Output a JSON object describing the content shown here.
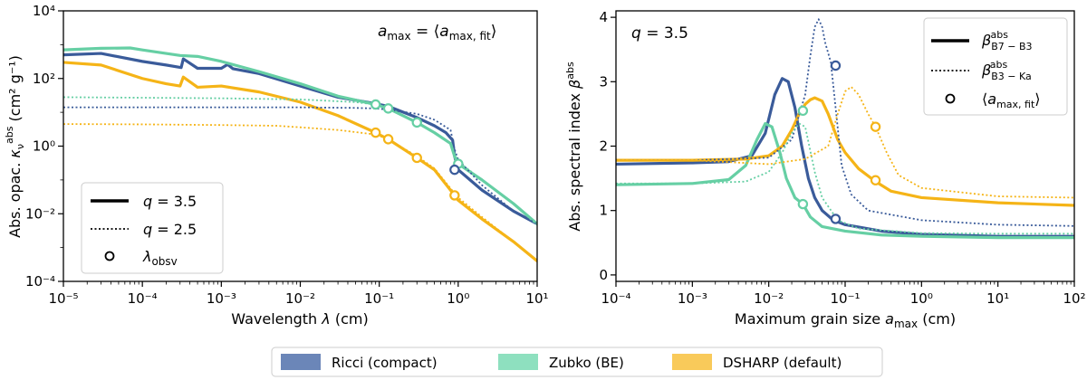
{
  "chart_data": [
    {
      "type": "line",
      "panel": "left",
      "xscale": "log",
      "yscale": "log",
      "xlabel": "Wavelength λ (cm)",
      "ylabel": "Abs. opac. κ_ν^abs (cm² g⁻¹)",
      "xlim": [
        1e-05,
        10
      ],
      "ylim": [
        0.0001,
        10000
      ],
      "xtick_labels": [
        "10⁻⁵",
        "10⁻⁴",
        "10⁻³",
        "10⁻²",
        "10⁻¹",
        "10⁰",
        "10¹"
      ],
      "ytick_labels": [
        "10⁻⁴",
        "10⁻²",
        "10⁰",
        "10²",
        "10⁴"
      ],
      "annotation": "a_max = ⟨a_max,fit⟩",
      "legend": {
        "position": "lower-left",
        "entries": [
          {
            "label": "q = 3.5",
            "style": "solid"
          },
          {
            "label": "q = 2.5",
            "style": "dotted"
          },
          {
            "label": "λ_obsv",
            "style": "marker"
          }
        ]
      },
      "series": [
        {
          "name": "Ricci (compact)",
          "color": "#3a5b9a",
          "style": "solid",
          "x": [
            1e-05,
            3e-05,
            0.0001,
            0.0002,
            0.00031,
            0.00033,
            0.0005,
            0.001,
            0.0012,
            0.0014,
            0.003,
            0.01,
            0.03,
            0.09,
            0.13,
            0.3,
            0.5,
            0.7,
            0.85,
            0.9,
            1,
            2,
            5,
            10
          ],
          "y": [
            500,
            550,
            320,
            250,
            210,
            380,
            200,
            200,
            260,
            195,
            140,
            60,
            28,
            18,
            15,
            7,
            4,
            2.5,
            1.5,
            0.5,
            0.2,
            0.05,
            0.012,
            0.005
          ]
        },
        {
          "name": "Zubko (BE)",
          "color": "#66cfa4",
          "style": "solid",
          "x": [
            1e-05,
            3e-05,
            7e-05,
            0.0001,
            0.0002,
            0.0003,
            0.0005,
            0.001,
            0.003,
            0.01,
            0.03,
            0.09,
            0.13,
            0.3,
            0.5,
            0.8,
            0.9,
            1,
            2,
            5,
            10
          ],
          "y": [
            700,
            780,
            800,
            700,
            550,
            480,
            450,
            320,
            160,
            70,
            30,
            17,
            13,
            5,
            2.5,
            1.2,
            0.5,
            0.3,
            0.1,
            0.02,
            0.005
          ]
        },
        {
          "name": "DSHARP (default)",
          "color": "#f5b417",
          "style": "solid",
          "x": [
            1e-05,
            3e-05,
            0.0001,
            0.0002,
            0.0003,
            0.00033,
            0.0005,
            0.001,
            0.003,
            0.01,
            0.03,
            0.09,
            0.13,
            0.3,
            0.5,
            0.9,
            1,
            2,
            5,
            10
          ],
          "y": [
            300,
            250,
            100,
            70,
            60,
            110,
            55,
            60,
            40,
            20,
            8,
            2.5,
            1.6,
            0.45,
            0.2,
            0.035,
            0.025,
            0.007,
            0.0015,
            0.0004
          ]
        },
        {
          "name": "Ricci (compact) q=2.5",
          "color": "#3a5b9a",
          "style": "dotted",
          "x": [
            1e-05,
            0.001,
            0.01,
            0.05,
            0.09,
            0.13,
            0.3,
            0.5,
            0.8,
            0.9,
            1,
            2,
            5,
            10
          ],
          "y": [
            14,
            14,
            14,
            13.5,
            13,
            12,
            9,
            6,
            3,
            0.8,
            0.4,
            0.07,
            0.012,
            0.005
          ]
        },
        {
          "name": "Zubko (BE) q=2.5",
          "color": "#66cfa4",
          "style": "dotted",
          "x": [
            1e-05,
            0.0001,
            0.001,
            0.01,
            0.05,
            0.09,
            0.13,
            0.3,
            0.5,
            0.8,
            0.9,
            1,
            2,
            5,
            10
          ],
          "y": [
            28,
            27,
            26,
            24,
            20,
            17,
            13,
            5,
            2.5,
            1.2,
            0.6,
            0.35,
            0.1,
            0.02,
            0.005
          ]
        },
        {
          "name": "DSHARP (default) q=2.5",
          "color": "#f5b417",
          "style": "dotted",
          "x": [
            1e-05,
            0.0001,
            0.001,
            0.005,
            0.01,
            0.03,
            0.09,
            0.13,
            0.3,
            0.5,
            0.9,
            1,
            2,
            5,
            10
          ],
          "y": [
            4.5,
            4.4,
            4.2,
            4,
            3.6,
            3,
            2.2,
            1.6,
            0.5,
            0.22,
            0.04,
            0.03,
            0.008,
            0.0015,
            0.0004
          ]
        }
      ],
      "markers": [
        {
          "color": "#66cfa4",
          "x": 0.09,
          "y": 17
        },
        {
          "color": "#66cfa4",
          "x": 0.13,
          "y": 13
        },
        {
          "color": "#66cfa4",
          "x": 0.3,
          "y": 5
        },
        {
          "color": "#66cfa4",
          "x": 1.0,
          "y": 0.3
        },
        {
          "color": "#3a5b9a",
          "x": 0.9,
          "y": 0.2
        },
        {
          "color": "#f5b417",
          "x": 0.09,
          "y": 2.5
        },
        {
          "color": "#f5b417",
          "x": 0.13,
          "y": 1.6
        },
        {
          "color": "#f5b417",
          "x": 0.3,
          "y": 0.45
        },
        {
          "color": "#f5b417",
          "x": 0.9,
          "y": 0.035
        }
      ]
    },
    {
      "type": "line",
      "panel": "right",
      "xscale": "log",
      "yscale": "linear",
      "xlabel": "Maximum grain size a_max (cm)",
      "ylabel": "Abs. spectral index β^abs",
      "xlim": [
        0.0001,
        100
      ],
      "ylim": [
        -0.1,
        4.1
      ],
      "xtick_labels": [
        "10⁻⁴",
        "10⁻³",
        "10⁻²",
        "10⁻¹",
        "10⁰",
        "10¹",
        "10²"
      ],
      "ytick_labels": [
        "0",
        "1",
        "2",
        "3",
        "4"
      ],
      "annotation": "q = 3.5",
      "legend": {
        "position": "top-right",
        "entries": [
          {
            "label": "β^abs_B7−B3",
            "style": "solid"
          },
          {
            "label": "β^abs_B3−Ka",
            "style": "dotted"
          },
          {
            "label": "⟨a_max,fit⟩",
            "style": "marker"
          }
        ]
      },
      "series": [
        {
          "name": "Ricci (compact)",
          "color": "#3a5b9a",
          "style": "solid",
          "x": [
            0.0001,
            0.001,
            0.003,
            0.006,
            0.009,
            0.012,
            0.015,
            0.018,
            0.022,
            0.027,
            0.033,
            0.04,
            0.05,
            0.07,
            0.1,
            0.3,
            1,
            10,
            100
          ],
          "y": [
            1.72,
            1.74,
            1.76,
            1.85,
            2.2,
            2.8,
            3.05,
            3.0,
            2.6,
            2.0,
            1.5,
            1.2,
            1.0,
            0.85,
            0.78,
            0.68,
            0.63,
            0.6,
            0.6
          ]
        },
        {
          "name": "Zubko (BE)",
          "color": "#66cfa4",
          "style": "solid",
          "x": [
            0.0001,
            0.001,
            0.003,
            0.005,
            0.007,
            0.009,
            0.011,
            0.014,
            0.017,
            0.022,
            0.028,
            0.035,
            0.05,
            0.1,
            0.3,
            1,
            10,
            100
          ],
          "y": [
            1.4,
            1.42,
            1.48,
            1.7,
            2.1,
            2.35,
            2.3,
            1.9,
            1.5,
            1.2,
            1.1,
            0.9,
            0.75,
            0.68,
            0.62,
            0.6,
            0.58,
            0.58
          ]
        },
        {
          "name": "DSHARP (default)",
          "color": "#f5b417",
          "style": "solid",
          "x": [
            0.0001,
            0.001,
            0.005,
            0.01,
            0.015,
            0.02,
            0.025,
            0.03,
            0.035,
            0.04,
            0.05,
            0.06,
            0.08,
            0.1,
            0.15,
            0.25,
            0.4,
            1,
            10,
            100
          ],
          "y": [
            1.78,
            1.78,
            1.8,
            1.85,
            2.0,
            2.25,
            2.5,
            2.65,
            2.72,
            2.75,
            2.7,
            2.5,
            2.1,
            1.9,
            1.65,
            1.45,
            1.3,
            1.2,
            1.12,
            1.08
          ]
        },
        {
          "name": "Ricci (compact) B3-Ka",
          "color": "#3a5b9a",
          "style": "dotted",
          "x": [
            0.0001,
            0.001,
            0.01,
            0.02,
            0.03,
            0.035,
            0.04,
            0.045,
            0.05,
            0.055,
            0.065,
            0.075,
            0.09,
            0.12,
            0.2,
            1,
            10,
            100
          ],
          "y": [
            1.78,
            1.78,
            1.82,
            2.1,
            2.8,
            3.4,
            3.85,
            3.97,
            3.85,
            3.6,
            3.3,
            2.6,
            1.7,
            1.25,
            1.0,
            0.85,
            0.78,
            0.76
          ]
        },
        {
          "name": "Zubko (BE) B3-Ka",
          "color": "#66cfa4",
          "style": "dotted",
          "x": [
            0.0001,
            0.001,
            0.005,
            0.01,
            0.015,
            0.02,
            0.025,
            0.03,
            0.04,
            0.05,
            0.08,
            0.15,
            1,
            10,
            100
          ],
          "y": [
            1.42,
            1.42,
            1.45,
            1.6,
            1.9,
            2.2,
            2.35,
            2.3,
            1.6,
            1.2,
            0.85,
            0.72,
            0.65,
            0.64,
            0.64
          ]
        },
        {
          "name": "DSHARP (default) B3-Ka",
          "color": "#f5b417",
          "style": "dotted",
          "x": [
            0.0001,
            0.001,
            0.01,
            0.03,
            0.06,
            0.08,
            0.1,
            0.12,
            0.15,
            0.2,
            0.25,
            0.35,
            0.5,
            1,
            10,
            100
          ],
          "y": [
            1.78,
            1.78,
            1.72,
            1.8,
            2.0,
            2.5,
            2.85,
            2.92,
            2.8,
            2.5,
            2.3,
            1.9,
            1.55,
            1.35,
            1.22,
            1.2
          ]
        }
      ],
      "markers": [
        {
          "color": "#3a5b9a",
          "x": 0.075,
          "y": 3.25
        },
        {
          "color": "#3a5b9a",
          "x": 0.075,
          "y": 0.87
        },
        {
          "color": "#66cfa4",
          "x": 0.028,
          "y": 2.55
        },
        {
          "color": "#66cfa4",
          "x": 0.028,
          "y": 1.1
        },
        {
          "color": "#f5b417",
          "x": 0.25,
          "y": 2.3
        },
        {
          "color": "#f5b417",
          "x": 0.25,
          "y": 1.47
        }
      ]
    }
  ],
  "bottom_legend": [
    {
      "label": "Ricci (compact)",
      "color": "#6b86b8"
    },
    {
      "label": "Zubko (BE)",
      "color": "#8ee0bf"
    },
    {
      "label": "DSHARP (default)",
      "color": "#f9ca5a"
    }
  ],
  "labels": {
    "left_annotation": "a_max = ⟨a_max,fit⟩",
    "right_annotation": "q = 3.5",
    "left_xlabel": "Wavelength λ (cm)",
    "left_ylabel": "Abs. opac. κ_ν^abs (cm² g⁻¹)",
    "right_xlabel": "Maximum grain size a_max (cm)",
    "right_ylabel": "Abs. spectral index β^abs",
    "left_legend_1": "q = 3.5",
    "left_legend_2": "q = 2.5",
    "left_legend_3": "λ_obsv",
    "right_legend_1": "β^abs_B7−B3",
    "right_legend_2": "β^abs_B3−Ka",
    "right_legend_3": "⟨a_max,fit⟩"
  }
}
